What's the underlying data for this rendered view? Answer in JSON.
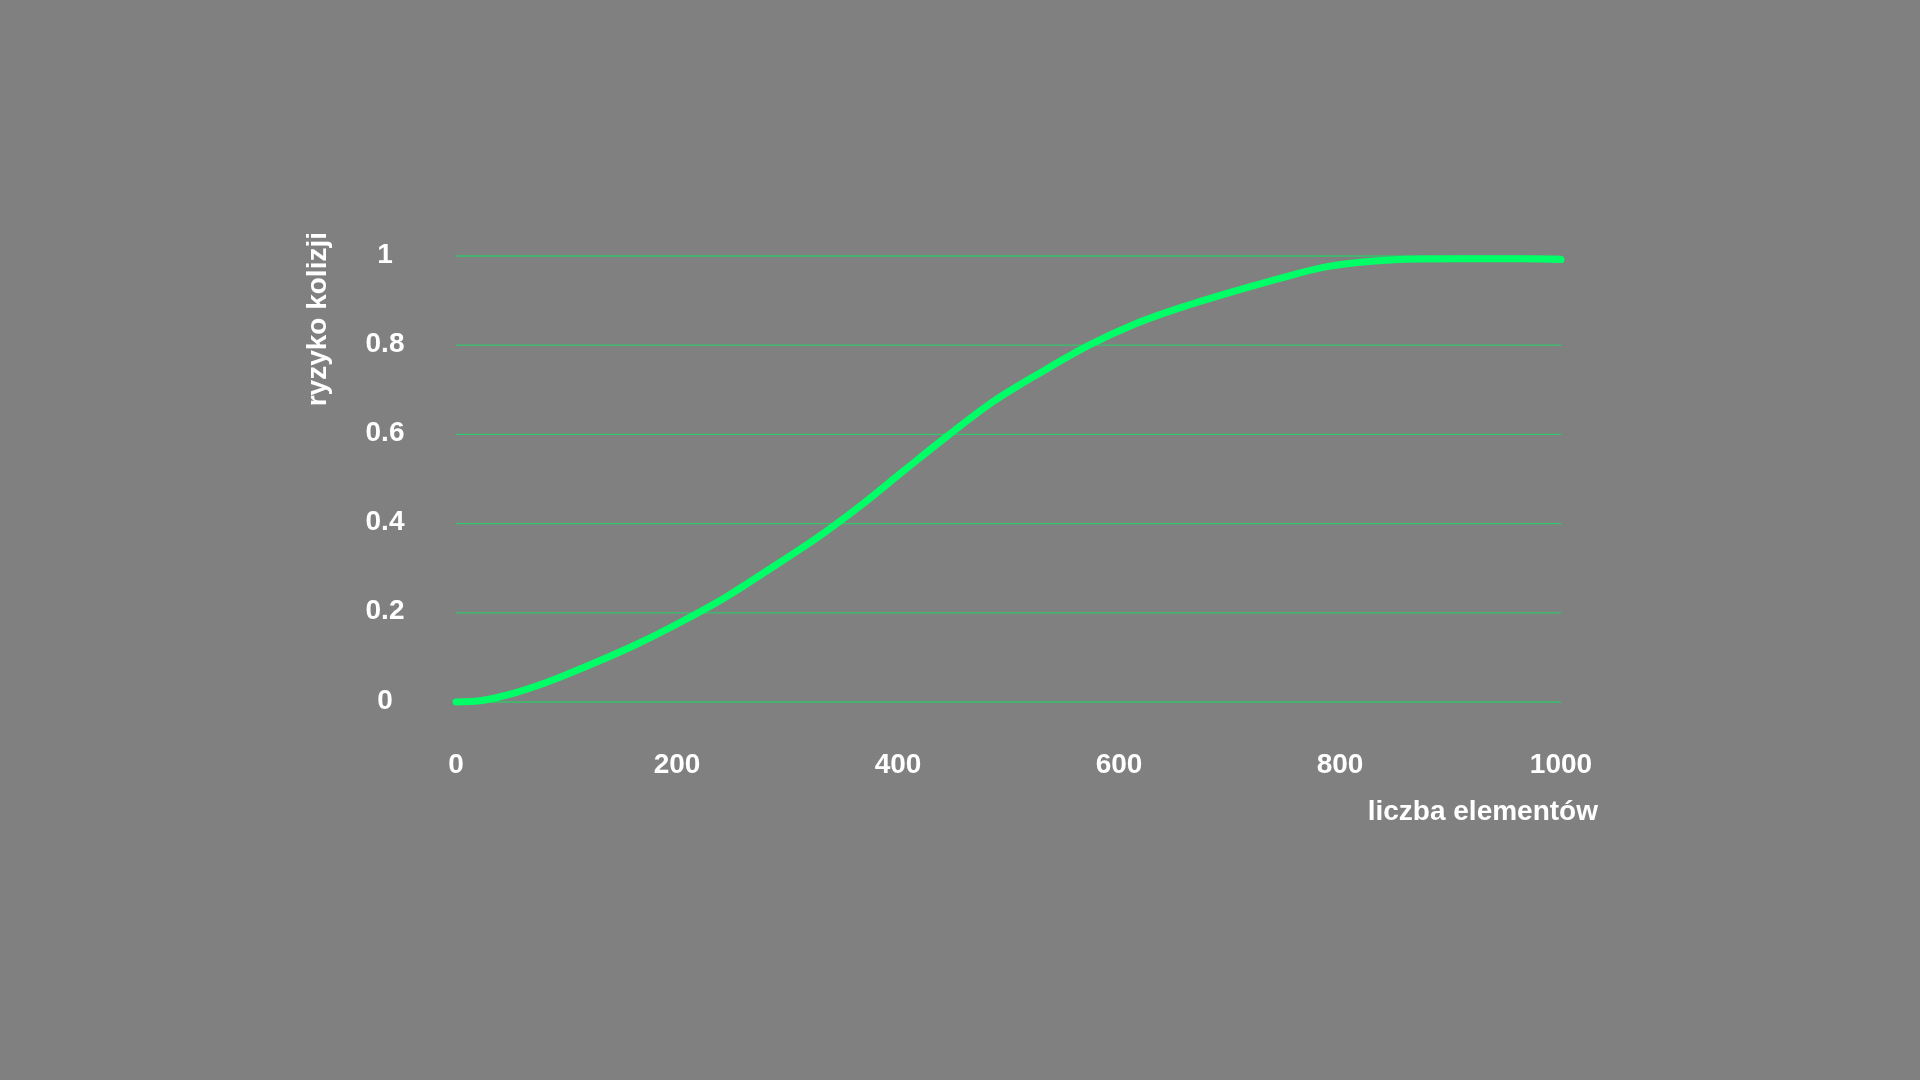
{
  "chart_data": {
    "type": "line",
    "xlabel": "liczba elementów",
    "ylabel": "ryzyko kolizji",
    "xlim": [
      0,
      1000
    ],
    "ylim": [
      0,
      1
    ],
    "xticks": [
      0,
      200,
      400,
      600,
      800,
      1000
    ],
    "yticks": [
      0,
      0.2,
      0.4,
      0.6,
      0.8,
      1
    ],
    "grid": "y",
    "series": [
      {
        "color": "#00ff66",
        "x": [
          0,
          22,
          42,
          83,
          123,
          164,
          204,
          244,
          285,
          325,
          366,
          406,
          444,
          487,
          530,
          573,
          615,
          658,
          700,
          743,
          786,
          829,
          871,
          914,
          957,
          1000
        ],
        "values": [
          0,
          0.003,
          0.013,
          0.045,
          0.085,
          0.13,
          0.18,
          0.235,
          0.3,
          0.365,
          0.44,
          0.52,
          0.595,
          0.675,
          0.74,
          0.8,
          0.848,
          0.886,
          0.918,
          0.948,
          0.975,
          0.988,
          0.993,
          0.994,
          0.994,
          0.992
        ]
      }
    ]
  }
}
